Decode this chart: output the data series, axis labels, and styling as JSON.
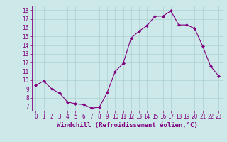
{
  "x": [
    0,
    1,
    2,
    3,
    4,
    5,
    6,
    7,
    8,
    9,
    10,
    11,
    12,
    13,
    14,
    15,
    16,
    17,
    18,
    19,
    20,
    21,
    22,
    23
  ],
  "y": [
    9.4,
    9.9,
    9.0,
    8.5,
    7.5,
    7.3,
    7.2,
    6.8,
    6.9,
    8.6,
    11.0,
    11.9,
    14.8,
    15.6,
    16.2,
    17.3,
    17.3,
    17.9,
    16.3,
    16.3,
    15.9,
    13.9,
    11.6,
    10.5
  ],
  "line_color": "#800080",
  "marker": "D",
  "marker_size": 2,
  "bg_color": "#cce8e8",
  "grid_color": "#aad0d0",
  "xlabel": "Windchill (Refroidissement éolien,°C)",
  "xlim": [
    -0.5,
    23.5
  ],
  "ylim": [
    6.5,
    18.5
  ],
  "yticks": [
    7,
    8,
    9,
    10,
    11,
    12,
    13,
    14,
    15,
    16,
    17,
    18
  ],
  "xticks": [
    0,
    1,
    2,
    3,
    4,
    5,
    6,
    7,
    8,
    9,
    10,
    11,
    12,
    13,
    14,
    15,
    16,
    17,
    18,
    19,
    20,
    21,
    22,
    23
  ],
  "tick_color": "#800080",
  "label_color": "#800080",
  "tick_fontsize": 5.5,
  "xlabel_fontsize": 6.5
}
